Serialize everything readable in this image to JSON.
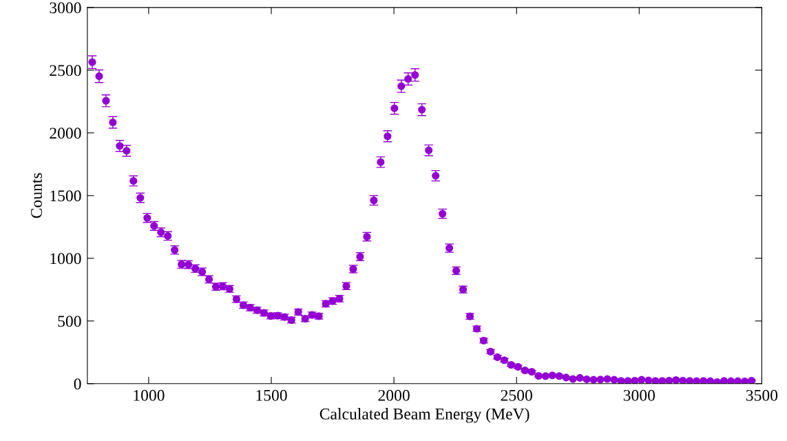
{
  "chart_data": {
    "type": "scatter",
    "xlabel": "Calculated Beam Energy (MeV)",
    "ylabel": "Counts",
    "xlim": [
      750,
      3500
    ],
    "xticks": [
      1000,
      1500,
      2000,
      2500,
      3000,
      3500
    ],
    "ylim": [
      0,
      3000
    ],
    "yticks": [
      0,
      500,
      1000,
      1500,
      2000,
      2500,
      3000
    ],
    "grid": false,
    "legend": false,
    "marker": "circle",
    "series": [
      {
        "color": "#9400d3",
        "x": [
          770,
          798,
          826,
          854,
          882,
          910,
          938,
          966,
          994,
          1022,
          1050,
          1078,
          1106,
          1134,
          1162,
          1190,
          1218,
          1246,
          1274,
          1302,
          1330,
          1358,
          1386,
          1414,
          1442,
          1470,
          1498,
          1526,
          1554,
          1582,
          1610,
          1638,
          1666,
          1694,
          1722,
          1750,
          1778,
          1806,
          1834,
          1862,
          1890,
          1918,
          1946,
          1974,
          2002,
          2030,
          2058,
          2086,
          2114,
          2142,
          2170,
          2198,
          2226,
          2254,
          2282,
          2310,
          2338,
          2366,
          2394,
          2422,
          2450,
          2478,
          2506,
          2534,
          2562,
          2590,
          2618,
          2646,
          2674,
          2702,
          2730,
          2758,
          2786,
          2814,
          2842,
          2870,
          2898,
          2926,
          2954,
          2982,
          3010,
          3038,
          3066,
          3094,
          3122,
          3150,
          3178,
          3206,
          3234,
          3262,
          3290,
          3318,
          3346,
          3374,
          3402,
          3430,
          3458
        ],
        "values": [
          2564,
          2452,
          2256,
          2084,
          1896,
          1857,
          1617,
          1482,
          1322,
          1258,
          1207,
          1178,
          1066,
          952,
          949,
          918,
          892,
          832,
          773,
          777,
          756,
          674,
          626,
          606,
          586,
          564,
          540,
          542,
          531,
          507,
          571,
          518,
          548,
          538,
          637,
          659,
          678,
          778,
          914,
          1013,
          1172,
          1462,
          1767,
          1973,
          2196,
          2372,
          2430,
          2462,
          2185,
          1861,
          1658,
          1355,
          1081,
          901,
          751,
          537,
          438,
          344,
          256,
          211,
          187,
          150,
          134,
          106,
          95,
          62,
          60,
          66,
          61,
          49,
          37,
          46,
          35,
          31,
          33,
          37,
          31,
          22,
          22,
          24,
          31,
          26,
          22,
          22,
          24,
          29,
          24,
          22,
          20,
          22,
          20,
          13,
          22,
          20,
          20,
          18,
          24
        ],
        "errors": [
          51,
          50,
          47,
          46,
          44,
          43,
          40,
          38,
          36,
          35,
          35,
          34,
          33,
          31,
          31,
          30,
          30,
          29,
          28,
          28,
          27,
          26,
          25,
          25,
          24,
          24,
          23,
          23,
          23,
          23,
          24,
          23,
          23,
          23,
          25,
          26,
          26,
          28,
          30,
          32,
          34,
          38,
          42,
          44,
          47,
          49,
          49,
          50,
          47,
          43,
          41,
          37,
          33,
          30,
          27,
          23,
          21,
          19,
          16,
          15,
          14,
          12,
          12,
          10,
          10,
          8,
          8,
          8,
          8,
          7,
          6,
          7,
          6,
          6,
          6,
          6,
          6,
          5,
          5,
          5,
          6,
          5,
          5,
          5,
          5,
          5,
          5,
          5,
          4,
          5,
          4,
          4,
          5,
          4,
          4,
          4,
          5
        ]
      }
    ]
  }
}
